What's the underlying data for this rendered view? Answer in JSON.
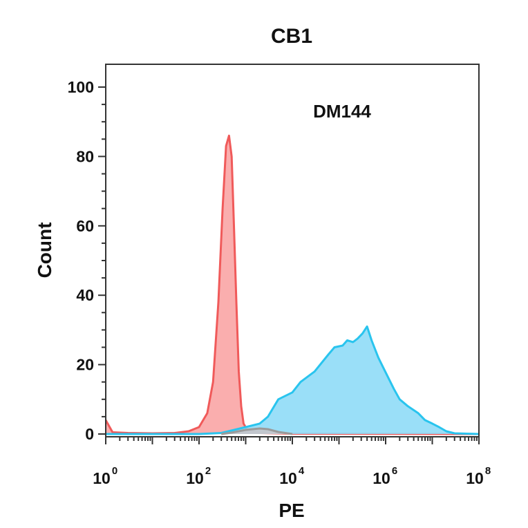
{
  "chart_data": {
    "type": "area",
    "title": "CB1",
    "annotation": "DM144",
    "xlabel": "PE",
    "ylabel": "Count",
    "x_scale": "log",
    "xlim": [
      1,
      100000000
    ],
    "ylim": [
      0,
      105
    ],
    "y_ticks": [
      0,
      20,
      40,
      60,
      80,
      100
    ],
    "y_tick_labels": [
      "0",
      "20",
      "40",
      "60",
      "80",
      "100"
    ],
    "x_ticks": [
      {
        "value": 1,
        "base": "10",
        "exp": "0"
      },
      {
        "value": 100,
        "base": "10",
        "exp": "2"
      },
      {
        "value": 10000,
        "base": "10",
        "exp": "4"
      },
      {
        "value": 1000000,
        "base": "10",
        "exp": "6"
      },
      {
        "value": 100000000,
        "base": "10",
        "exp": "8"
      }
    ],
    "grid": false,
    "series": [
      {
        "color": "#f05a5a",
        "fill": "#f9a5a5",
        "points": [
          [
            1,
            4
          ],
          [
            1.4,
            0.5
          ],
          [
            3,
            0.3
          ],
          [
            10,
            0.2
          ],
          [
            30,
            0.3
          ],
          [
            60,
            0.8
          ],
          [
            100,
            2
          ],
          [
            150,
            6
          ],
          [
            200,
            15
          ],
          [
            260,
            38
          ],
          [
            320,
            65
          ],
          [
            380,
            83
          ],
          [
            440,
            86
          ],
          [
            500,
            80
          ],
          [
            560,
            60
          ],
          [
            630,
            38
          ],
          [
            710,
            18
          ],
          [
            800,
            8
          ],
          [
            900,
            3
          ],
          [
            1100,
            1
          ],
          [
            2000,
            0.3
          ],
          [
            10000,
            0.1
          ],
          [
            100000000,
            0
          ]
        ]
      },
      {
        "color": "#29c4ee",
        "fill": "#8fdcf7",
        "points": [
          [
            1,
            0
          ],
          [
            100,
            0
          ],
          [
            300,
            0.3
          ],
          [
            1000,
            2
          ],
          [
            2000,
            3
          ],
          [
            3000,
            5
          ],
          [
            5000,
            10
          ],
          [
            10000,
            12
          ],
          [
            15000,
            15
          ],
          [
            30000,
            18
          ],
          [
            60000,
            23
          ],
          [
            80000,
            25
          ],
          [
            120000,
            25.5
          ],
          [
            150000,
            27
          ],
          [
            200000,
            26.5
          ],
          [
            250000,
            27.5
          ],
          [
            320000,
            29
          ],
          [
            400000,
            31
          ],
          [
            500000,
            27
          ],
          [
            700000,
            22
          ],
          [
            900000,
            19
          ],
          [
            1500000,
            13
          ],
          [
            2000000,
            10
          ],
          [
            3000000,
            8
          ],
          [
            5000000,
            6
          ],
          [
            7000000,
            4
          ],
          [
            10000000,
            3
          ],
          [
            14000000,
            2
          ],
          [
            20000000,
            0.8
          ],
          [
            30000000,
            0.2
          ],
          [
            100000000,
            0
          ]
        ]
      },
      {
        "color": "#9a9a9a",
        "fill": "#c9c4c8",
        "points": [
          [
            300,
            0
          ],
          [
            500,
            0.4
          ],
          [
            1000,
            1.2
          ],
          [
            2000,
            1.6
          ],
          [
            3000,
            1.4
          ],
          [
            5000,
            0.6
          ],
          [
            10000,
            0
          ]
        ]
      }
    ]
  }
}
